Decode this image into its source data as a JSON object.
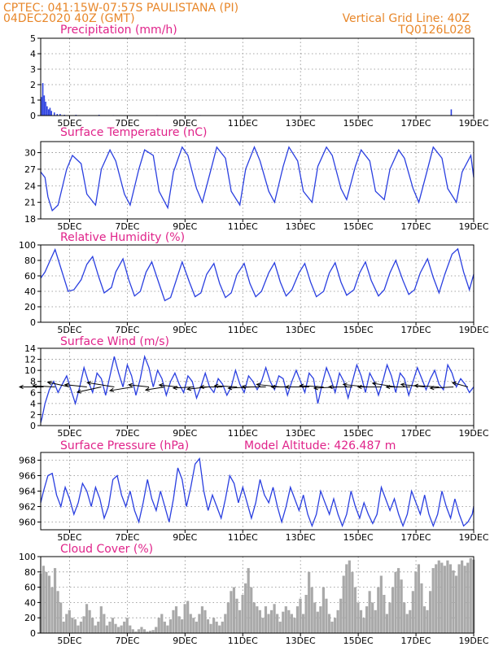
{
  "header": {
    "line1_left": "CPTEC:   041:15W-07:57S   PAULISTANA (PI)",
    "line2_left": "04DEC2020 40Z (GMT)",
    "line1_right": "Vertical Grid Line: 40Z",
    "line2_right": "TQ0126L028"
  },
  "colors": {
    "header": "#e8872a",
    "panel_title": "#e0238a",
    "line": "#2a3fe0",
    "bar": "#2a3fe0",
    "cloud": "#a9a9a9",
    "wind_arrow": "#000000"
  },
  "x_axis": {
    "start_day": 4.0,
    "end_day": 19.0,
    "tick_days": [
      5,
      7,
      9,
      11,
      13,
      15,
      17,
      19
    ],
    "tick_labels": [
      "5DEC",
      "7DEC",
      "9DEC",
      "11DEC",
      "13DEC",
      "15DEC",
      "17DEC",
      "19DEC"
    ]
  },
  "chart_data": [
    {
      "id": "precip",
      "type": "bar",
      "title": "Precipitation (mm/h)",
      "ylim": [
        0,
        5
      ],
      "yticks": [
        0,
        1,
        2,
        3,
        4,
        5
      ],
      "grid": true,
      "x": [
        4.0,
        4.05,
        4.1,
        4.15,
        4.2,
        4.25,
        4.3,
        4.35,
        4.45,
        4.55,
        4.65,
        4.8,
        5.2,
        6.0,
        6.5,
        8.0,
        9.5,
        18.2
      ],
      "values": [
        1.2,
        2.1,
        1.3,
        0.9,
        0.6,
        0.4,
        0.5,
        0.3,
        0.2,
        0.1,
        0.1,
        0.05,
        0.05,
        0.05,
        0.03,
        0.03,
        0.03,
        0.4
      ]
    },
    {
      "id": "temp",
      "type": "line",
      "title": "Surface Temperature (nC)",
      "ylim": [
        18,
        32
      ],
      "yticks": [
        18,
        21,
        24,
        27,
        30
      ],
      "grid": true,
      "x": [
        4.0,
        4.15,
        4.25,
        4.4,
        4.6,
        4.9,
        5.1,
        5.4,
        5.6,
        5.9,
        6.1,
        6.4,
        6.6,
        6.9,
        7.1,
        7.4,
        7.6,
        7.9,
        8.1,
        8.4,
        8.6,
        8.9,
        9.1,
        9.4,
        9.6,
        9.9,
        10.1,
        10.4,
        10.6,
        10.9,
        11.1,
        11.4,
        11.6,
        11.9,
        12.1,
        12.4,
        12.6,
        12.9,
        13.1,
        13.4,
        13.6,
        13.9,
        14.1,
        14.4,
        14.6,
        14.9,
        15.1,
        15.4,
        15.6,
        15.9,
        16.1,
        16.4,
        16.6,
        16.9,
        17.1,
        17.4,
        17.6,
        17.9,
        18.1,
        18.4,
        18.6,
        18.9,
        19.0
      ],
      "values": [
        26.5,
        25.5,
        22.0,
        19.5,
        20.5,
        27.0,
        29.5,
        28.0,
        22.5,
        20.5,
        27.0,
        30.5,
        28.5,
        22.5,
        20.5,
        27.0,
        30.5,
        29.5,
        23.0,
        20.0,
        26.5,
        31.0,
        29.5,
        23.5,
        21.0,
        27.0,
        31.0,
        29.0,
        23.0,
        20.5,
        27.0,
        31.0,
        28.5,
        23.0,
        21.0,
        27.5,
        31.0,
        28.5,
        23.0,
        21.0,
        27.5,
        31.0,
        29.5,
        23.5,
        21.5,
        27.5,
        30.5,
        28.5,
        23.0,
        21.5,
        27.0,
        30.5,
        29.0,
        23.5,
        21.0,
        27.0,
        31.0,
        29.0,
        23.5,
        21.0,
        26.5,
        29.5,
        25.5
      ]
    },
    {
      "id": "rh",
      "type": "line",
      "title": "Relative Humidity (%)",
      "ylim": [
        0,
        100
      ],
      "yticks": [
        0,
        20,
        40,
        60,
        80,
        100
      ],
      "grid": true,
      "x": [
        4.0,
        4.15,
        4.35,
        4.5,
        4.7,
        4.95,
        5.15,
        5.4,
        5.6,
        5.8,
        6.0,
        6.2,
        6.45,
        6.6,
        6.85,
        7.05,
        7.25,
        7.45,
        7.65,
        7.85,
        8.1,
        8.3,
        8.5,
        8.7,
        8.9,
        9.15,
        9.35,
        9.55,
        9.75,
        10.0,
        10.2,
        10.4,
        10.6,
        10.8,
        11.05,
        11.25,
        11.45,
        11.65,
        11.9,
        12.1,
        12.3,
        12.5,
        12.7,
        12.95,
        13.15,
        13.35,
        13.55,
        13.8,
        14.0,
        14.2,
        14.4,
        14.6,
        14.85,
        15.05,
        15.25,
        15.45,
        15.7,
        15.9,
        16.1,
        16.3,
        16.55,
        16.75,
        16.95,
        17.15,
        17.4,
        17.6,
        17.8,
        18.0,
        18.25,
        18.45,
        18.65,
        18.85,
        19.0
      ],
      "values": [
        57,
        65,
        82,
        94,
        70,
        40,
        42,
        55,
        75,
        85,
        60,
        38,
        45,
        65,
        82,
        55,
        34,
        40,
        65,
        78,
        50,
        28,
        32,
        55,
        78,
        52,
        33,
        38,
        62,
        76,
        50,
        32,
        38,
        62,
        76,
        50,
        33,
        40,
        64,
        77,
        52,
        34,
        42,
        64,
        76,
        52,
        33,
        40,
        64,
        77,
        52,
        35,
        42,
        64,
        78,
        54,
        34,
        42,
        64,
        80,
        54,
        36,
        42,
        64,
        82,
        58,
        38,
        62,
        88,
        95,
        65,
        42,
        62
      ]
    },
    {
      "id": "wind",
      "type": "line",
      "title": "Surface Wind (m/s)",
      "ylim": [
        0,
        14
      ],
      "yticks": [
        0,
        2,
        4,
        6,
        8,
        10,
        12,
        14
      ],
      "grid": true,
      "x": [
        4.0,
        4.05,
        4.15,
        4.3,
        4.45,
        4.6,
        4.75,
        4.9,
        5.05,
        5.2,
        5.35,
        5.5,
        5.65,
        5.8,
        5.95,
        6.1,
        6.25,
        6.4,
        6.55,
        6.7,
        6.85,
        7.0,
        7.15,
        7.3,
        7.45,
        7.6,
        7.75,
        7.9,
        8.05,
        8.2,
        8.35,
        8.5,
        8.65,
        8.8,
        8.95,
        9.1,
        9.25,
        9.4,
        9.55,
        9.7,
        9.85,
        10.0,
        10.15,
        10.3,
        10.45,
        10.6,
        10.75,
        10.9,
        11.05,
        11.2,
        11.35,
        11.5,
        11.65,
        11.8,
        11.95,
        12.1,
        12.25,
        12.4,
        12.55,
        12.7,
        12.85,
        13.0,
        13.15,
        13.3,
        13.45,
        13.6,
        13.75,
        13.9,
        14.05,
        14.2,
        14.35,
        14.5,
        14.65,
        14.8,
        14.95,
        15.1,
        15.25,
        15.4,
        15.55,
        15.7,
        15.85,
        16.0,
        16.15,
        16.3,
        16.45,
        16.6,
        16.75,
        16.9,
        17.05,
        17.2,
        17.35,
        17.5,
        17.65,
        17.8,
        17.95,
        18.1,
        18.25,
        18.4,
        18.55,
        18.7,
        18.85,
        19.0
      ],
      "values": [
        0.5,
        1.5,
        4.0,
        6.5,
        8.0,
        6.0,
        7.5,
        9.0,
        6.5,
        4.0,
        7.0,
        10.5,
        8.0,
        6.0,
        9.5,
        8.5,
        5.5,
        9.0,
        12.5,
        9.5,
        7.0,
        11.0,
        9.0,
        5.5,
        8.5,
        12.5,
        10.5,
        7.0,
        10.0,
        8.5,
        5.5,
        8.0,
        9.5,
        7.5,
        6.0,
        9.0,
        8.0,
        5.0,
        7.0,
        9.5,
        7.0,
        6.0,
        8.5,
        7.5,
        5.5,
        7.0,
        10.0,
        7.5,
        6.0,
        9.0,
        8.0,
        6.5,
        8.0,
        10.5,
        8.0,
        6.5,
        9.0,
        8.5,
        5.5,
        8.0,
        10.0,
        8.0,
        6.0,
        9.5,
        8.5,
        4.0,
        7.5,
        10.5,
        8.5,
        6.0,
        9.5,
        8.0,
        5.0,
        8.0,
        11.0,
        9.0,
        6.0,
        9.5,
        8.0,
        5.5,
        8.0,
        11.0,
        9.0,
        6.0,
        9.5,
        8.5,
        5.5,
        8.0,
        10.5,
        8.5,
        6.5,
        8.5,
        10.0,
        7.5,
        6.5,
        11.0,
        9.5,
        7.0,
        8.5,
        7.5,
        6.0,
        7.0
      ],
      "arrow_x": [
        4.1,
        4.5,
        5.0,
        5.6,
        6.1,
        6.55,
        7.2,
        7.75,
        8.3,
        8.75,
        9.3,
        9.8,
        10.3,
        10.8,
        11.3,
        11.8,
        12.3,
        12.8,
        13.3,
        13.8,
        14.3,
        14.8,
        15.3,
        15.8,
        16.3,
        16.8,
        17.3,
        17.8,
        18.3,
        18.8
      ],
      "arrow_speed": [
        7.0,
        6.5,
        6.8,
        6.5,
        7.5,
        8.2,
        7.0,
        6.0,
        5.8,
        5.5,
        6.0,
        6.2,
        6.5,
        6.6,
        6.8,
        7.0,
        7.0,
        6.8,
        6.9,
        7.0,
        7.0,
        6.9,
        7.0,
        6.8,
        7.0,
        7.0,
        7.0,
        7.2,
        6.8,
        5.0
      ],
      "arrow_dir_deg": [
        180,
        175,
        160,
        170,
        200,
        165,
        195,
        170,
        195,
        170,
        185,
        190,
        180,
        175,
        185,
        180,
        170,
        180,
        180,
        175,
        185,
        180,
        170,
        180,
        165,
        180,
        170,
        175,
        185,
        155
      ]
    },
    {
      "id": "pressure",
      "type": "line",
      "title": "Surface Pressure (hPa)",
      "annotation": "Model Altitude: 426.487  m",
      "ylim": [
        959,
        969
      ],
      "yticks": [
        960,
        962,
        964,
        966,
        968
      ],
      "grid": true,
      "x": [
        4.0,
        4.1,
        4.25,
        4.4,
        4.55,
        4.7,
        4.85,
        5.0,
        5.15,
        5.3,
        5.45,
        5.6,
        5.75,
        5.9,
        6.05,
        6.2,
        6.35,
        6.5,
        6.65,
        6.8,
        6.95,
        7.1,
        7.25,
        7.4,
        7.55,
        7.7,
        7.85,
        8.0,
        8.15,
        8.3,
        8.45,
        8.6,
        8.75,
        8.9,
        9.05,
        9.2,
        9.35,
        9.5,
        9.65,
        9.8,
        9.95,
        10.1,
        10.25,
        10.4,
        10.55,
        10.7,
        10.85,
        11.0,
        11.15,
        11.3,
        11.45,
        11.6,
        11.75,
        11.9,
        12.05,
        12.2,
        12.35,
        12.5,
        12.65,
        12.8,
        12.95,
        13.1,
        13.25,
        13.4,
        13.55,
        13.7,
        13.85,
        14.0,
        14.15,
        14.3,
        14.45,
        14.6,
        14.75,
        14.9,
        15.05,
        15.2,
        15.35,
        15.5,
        15.65,
        15.8,
        15.95,
        16.1,
        16.25,
        16.4,
        16.55,
        16.7,
        16.85,
        17.0,
        17.15,
        17.3,
        17.45,
        17.6,
        17.75,
        17.9,
        18.05,
        18.2,
        18.35,
        18.5,
        18.65,
        18.8,
        18.95,
        19.0
      ],
      "values": [
        962.5,
        964.0,
        966.0,
        966.3,
        963.5,
        962.0,
        964.5,
        963.0,
        961.0,
        962.5,
        965.0,
        964.0,
        962.0,
        964.5,
        963.0,
        960.5,
        962.0,
        965.5,
        966.0,
        963.5,
        962.0,
        964.0,
        961.5,
        960.0,
        962.5,
        965.5,
        963.0,
        961.5,
        964.0,
        962.0,
        960.0,
        963.0,
        967.0,
        965.5,
        962.0,
        964.5,
        967.5,
        968.2,
        964.0,
        961.5,
        963.5,
        962.0,
        960.5,
        963.0,
        966.0,
        965.0,
        962.5,
        964.5,
        962.5,
        960.5,
        962.5,
        965.5,
        963.5,
        962.5,
        964.5,
        962.0,
        960.0,
        962.0,
        964.5,
        963.0,
        961.5,
        963.5,
        961.0,
        959.5,
        961.0,
        964.0,
        962.5,
        961.0,
        963.0,
        961.0,
        959.5,
        961.0,
        964.0,
        962.0,
        960.5,
        962.5,
        961.0,
        959.8,
        961.0,
        964.5,
        963.0,
        961.5,
        963.0,
        961.0,
        959.5,
        961.0,
        964.0,
        962.5,
        961.0,
        963.5,
        961.0,
        959.5,
        961.0,
        964.0,
        962.0,
        960.5,
        963.0,
        961.0,
        959.5,
        960.0,
        961.0,
        962.0
      ]
    },
    {
      "id": "cloud",
      "type": "area",
      "title": "Cloud Cover (%)",
      "ylim": [
        0,
        100
      ],
      "yticks": [
        0,
        20,
        40,
        60,
        80,
        100
      ],
      "grid": true,
      "x": [
        4.0,
        4.1,
        4.2,
        4.3,
        4.4,
        4.5,
        4.6,
        4.7,
        4.8,
        4.9,
        5.0,
        5.1,
        5.2,
        5.3,
        5.4,
        5.5,
        5.6,
        5.7,
        5.8,
        5.9,
        6.0,
        6.1,
        6.2,
        6.3,
        6.4,
        6.5,
        6.6,
        6.7,
        6.8,
        6.9,
        7.0,
        7.1,
        7.2,
        7.3,
        7.4,
        7.5,
        7.6,
        7.7,
        7.8,
        7.9,
        8.0,
        8.1,
        8.2,
        8.3,
        8.4,
        8.5,
        8.6,
        8.7,
        8.8,
        8.9,
        9.0,
        9.1,
        9.2,
        9.3,
        9.4,
        9.5,
        9.6,
        9.7,
        9.8,
        9.9,
        10.0,
        10.1,
        10.2,
        10.3,
        10.4,
        10.5,
        10.6,
        10.7,
        10.8,
        10.9,
        11.0,
        11.1,
        11.2,
        11.3,
        11.4,
        11.5,
        11.6,
        11.7,
        11.8,
        11.9,
        12.0,
        12.1,
        12.2,
        12.3,
        12.4,
        12.5,
        12.6,
        12.7,
        12.8,
        12.9,
        13.0,
        13.1,
        13.2,
        13.3,
        13.4,
        13.5,
        13.6,
        13.7,
        13.8,
        13.9,
        14.0,
        14.1,
        14.2,
        14.3,
        14.4,
        14.5,
        14.6,
        14.7,
        14.8,
        14.9,
        15.0,
        15.1,
        15.2,
        15.3,
        15.4,
        15.5,
        15.6,
        15.7,
        15.8,
        15.9,
        16.0,
        16.1,
        16.2,
        16.3,
        16.4,
        16.5,
        16.6,
        16.7,
        16.8,
        16.9,
        17.0,
        17.1,
        17.2,
        17.3,
        17.4,
        17.5,
        17.6,
        17.7,
        17.8,
        17.9,
        18.0,
        18.1,
        18.2,
        18.3,
        18.4,
        18.5,
        18.6,
        18.7,
        18.8,
        18.9,
        19.0
      ],
      "values": [
        78,
        88,
        80,
        75,
        60,
        85,
        55,
        40,
        15,
        25,
        30,
        20,
        18,
        10,
        15,
        22,
        38,
        30,
        20,
        10,
        15,
        35,
        25,
        10,
        15,
        20,
        12,
        8,
        10,
        15,
        20,
        10,
        5,
        2,
        5,
        8,
        5,
        2,
        3,
        4,
        8,
        20,
        25,
        15,
        10,
        18,
        30,
        35,
        22,
        18,
        38,
        42,
        25,
        20,
        15,
        25,
        35,
        30,
        18,
        12,
        20,
        15,
        10,
        15,
        25,
        40,
        55,
        60,
        45,
        30,
        50,
        65,
        85,
        60,
        40,
        35,
        30,
        20,
        35,
        25,
        30,
        38,
        25,
        15,
        28,
        35,
        30,
        25,
        20,
        35,
        45,
        25,
        50,
        80,
        60,
        40,
        28,
        35,
        60,
        45,
        25,
        15,
        20,
        30,
        45,
        75,
        90,
        95,
        80,
        60,
        40,
        30,
        20,
        35,
        55,
        40,
        30,
        60,
        75,
        50,
        25,
        40,
        60,
        80,
        85,
        70,
        40,
        25,
        30,
        55,
        80,
        90,
        65,
        35,
        30,
        55,
        85,
        90,
        95,
        92,
        88,
        95,
        90,
        82,
        75,
        90,
        95,
        88,
        92,
        98,
        96
      ]
    }
  ]
}
